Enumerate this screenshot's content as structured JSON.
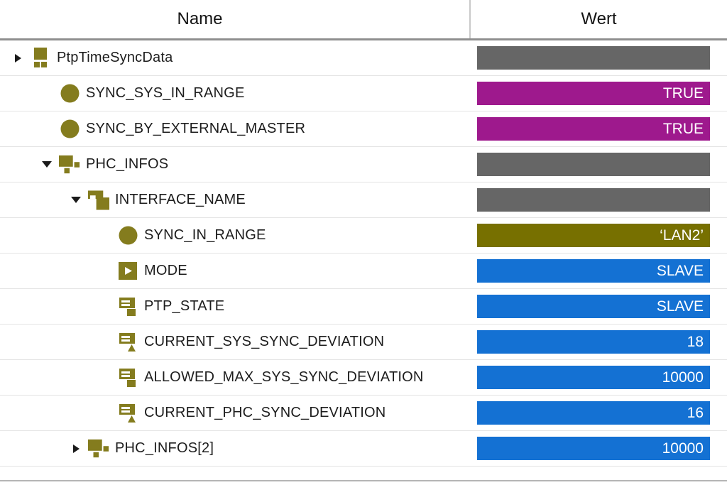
{
  "header": {
    "name_label": "Name",
    "wert_label": "Wert"
  },
  "colors": {
    "icon_olive": "#847c1e",
    "bar_gray": "#666666",
    "bar_magenta": "#9e198d",
    "bar_blue": "#1471d3",
    "bar_olive": "#777000"
  },
  "rows": [
    {
      "name": "PtpTimeSyncData",
      "level": 1,
      "arrow": "collapsed",
      "icon": "struct-icon",
      "value": "",
      "value_color": "bar_gray"
    },
    {
      "name": "SYNC_SYS_IN_RANGE",
      "level": 2,
      "arrow": "none",
      "icon": "bool-circle-icon",
      "value": "TRUE",
      "value_color": "bar_magenta"
    },
    {
      "name": "SYNC_BY_EXTERNAL_MASTER",
      "level": 2,
      "arrow": "none",
      "icon": "bool-circle-icon",
      "value": "TRUE",
      "value_color": "bar_magenta"
    },
    {
      "name": "PHC_INFOS",
      "level": 2,
      "arrow": "expanded",
      "icon": "array-icon",
      "value": "",
      "value_color": "bar_gray"
    },
    {
      "name": "INTERFACE_NAME",
      "level": 3,
      "arrow": "expanded",
      "icon": "interface-icon",
      "value": "",
      "value_color": "bar_gray"
    },
    {
      "name": "SYNC_IN_RANGE",
      "level": 4,
      "arrow": "none",
      "icon": "bool-circle-icon",
      "value": "‘LAN2’",
      "value_color": "bar_olive"
    },
    {
      "name": "MODE",
      "level": 4,
      "arrow": "none",
      "icon": "enum-icon",
      "value": "SLAVE",
      "value_color": "bar_blue"
    },
    {
      "name": "PTP_STATE",
      "level": 4,
      "arrow": "none",
      "icon": "string-icon",
      "value": "SLAVE",
      "value_color": "bar_blue"
    },
    {
      "name": "CURRENT_SYS_SYNC_DEVIATION",
      "level": 4,
      "arrow": "none",
      "icon": "number-icon",
      "value": "18",
      "value_color": "bar_blue"
    },
    {
      "name": "ALLOWED_MAX_SYS_SYNC_DEVIATION",
      "level": 4,
      "arrow": "none",
      "icon": "string-icon",
      "value": "10000",
      "value_color": "bar_blue"
    },
    {
      "name": "CURRENT_PHC_SYNC_DEVIATION",
      "level": 4,
      "arrow": "none",
      "icon": "number-icon",
      "value": "16",
      "value_color": "bar_blue"
    },
    {
      "name": "PHC_INFOS[2]",
      "level": 3,
      "arrow": "collapsed",
      "icon": "array-icon",
      "value": "10000",
      "value_color": "bar_blue"
    }
  ]
}
